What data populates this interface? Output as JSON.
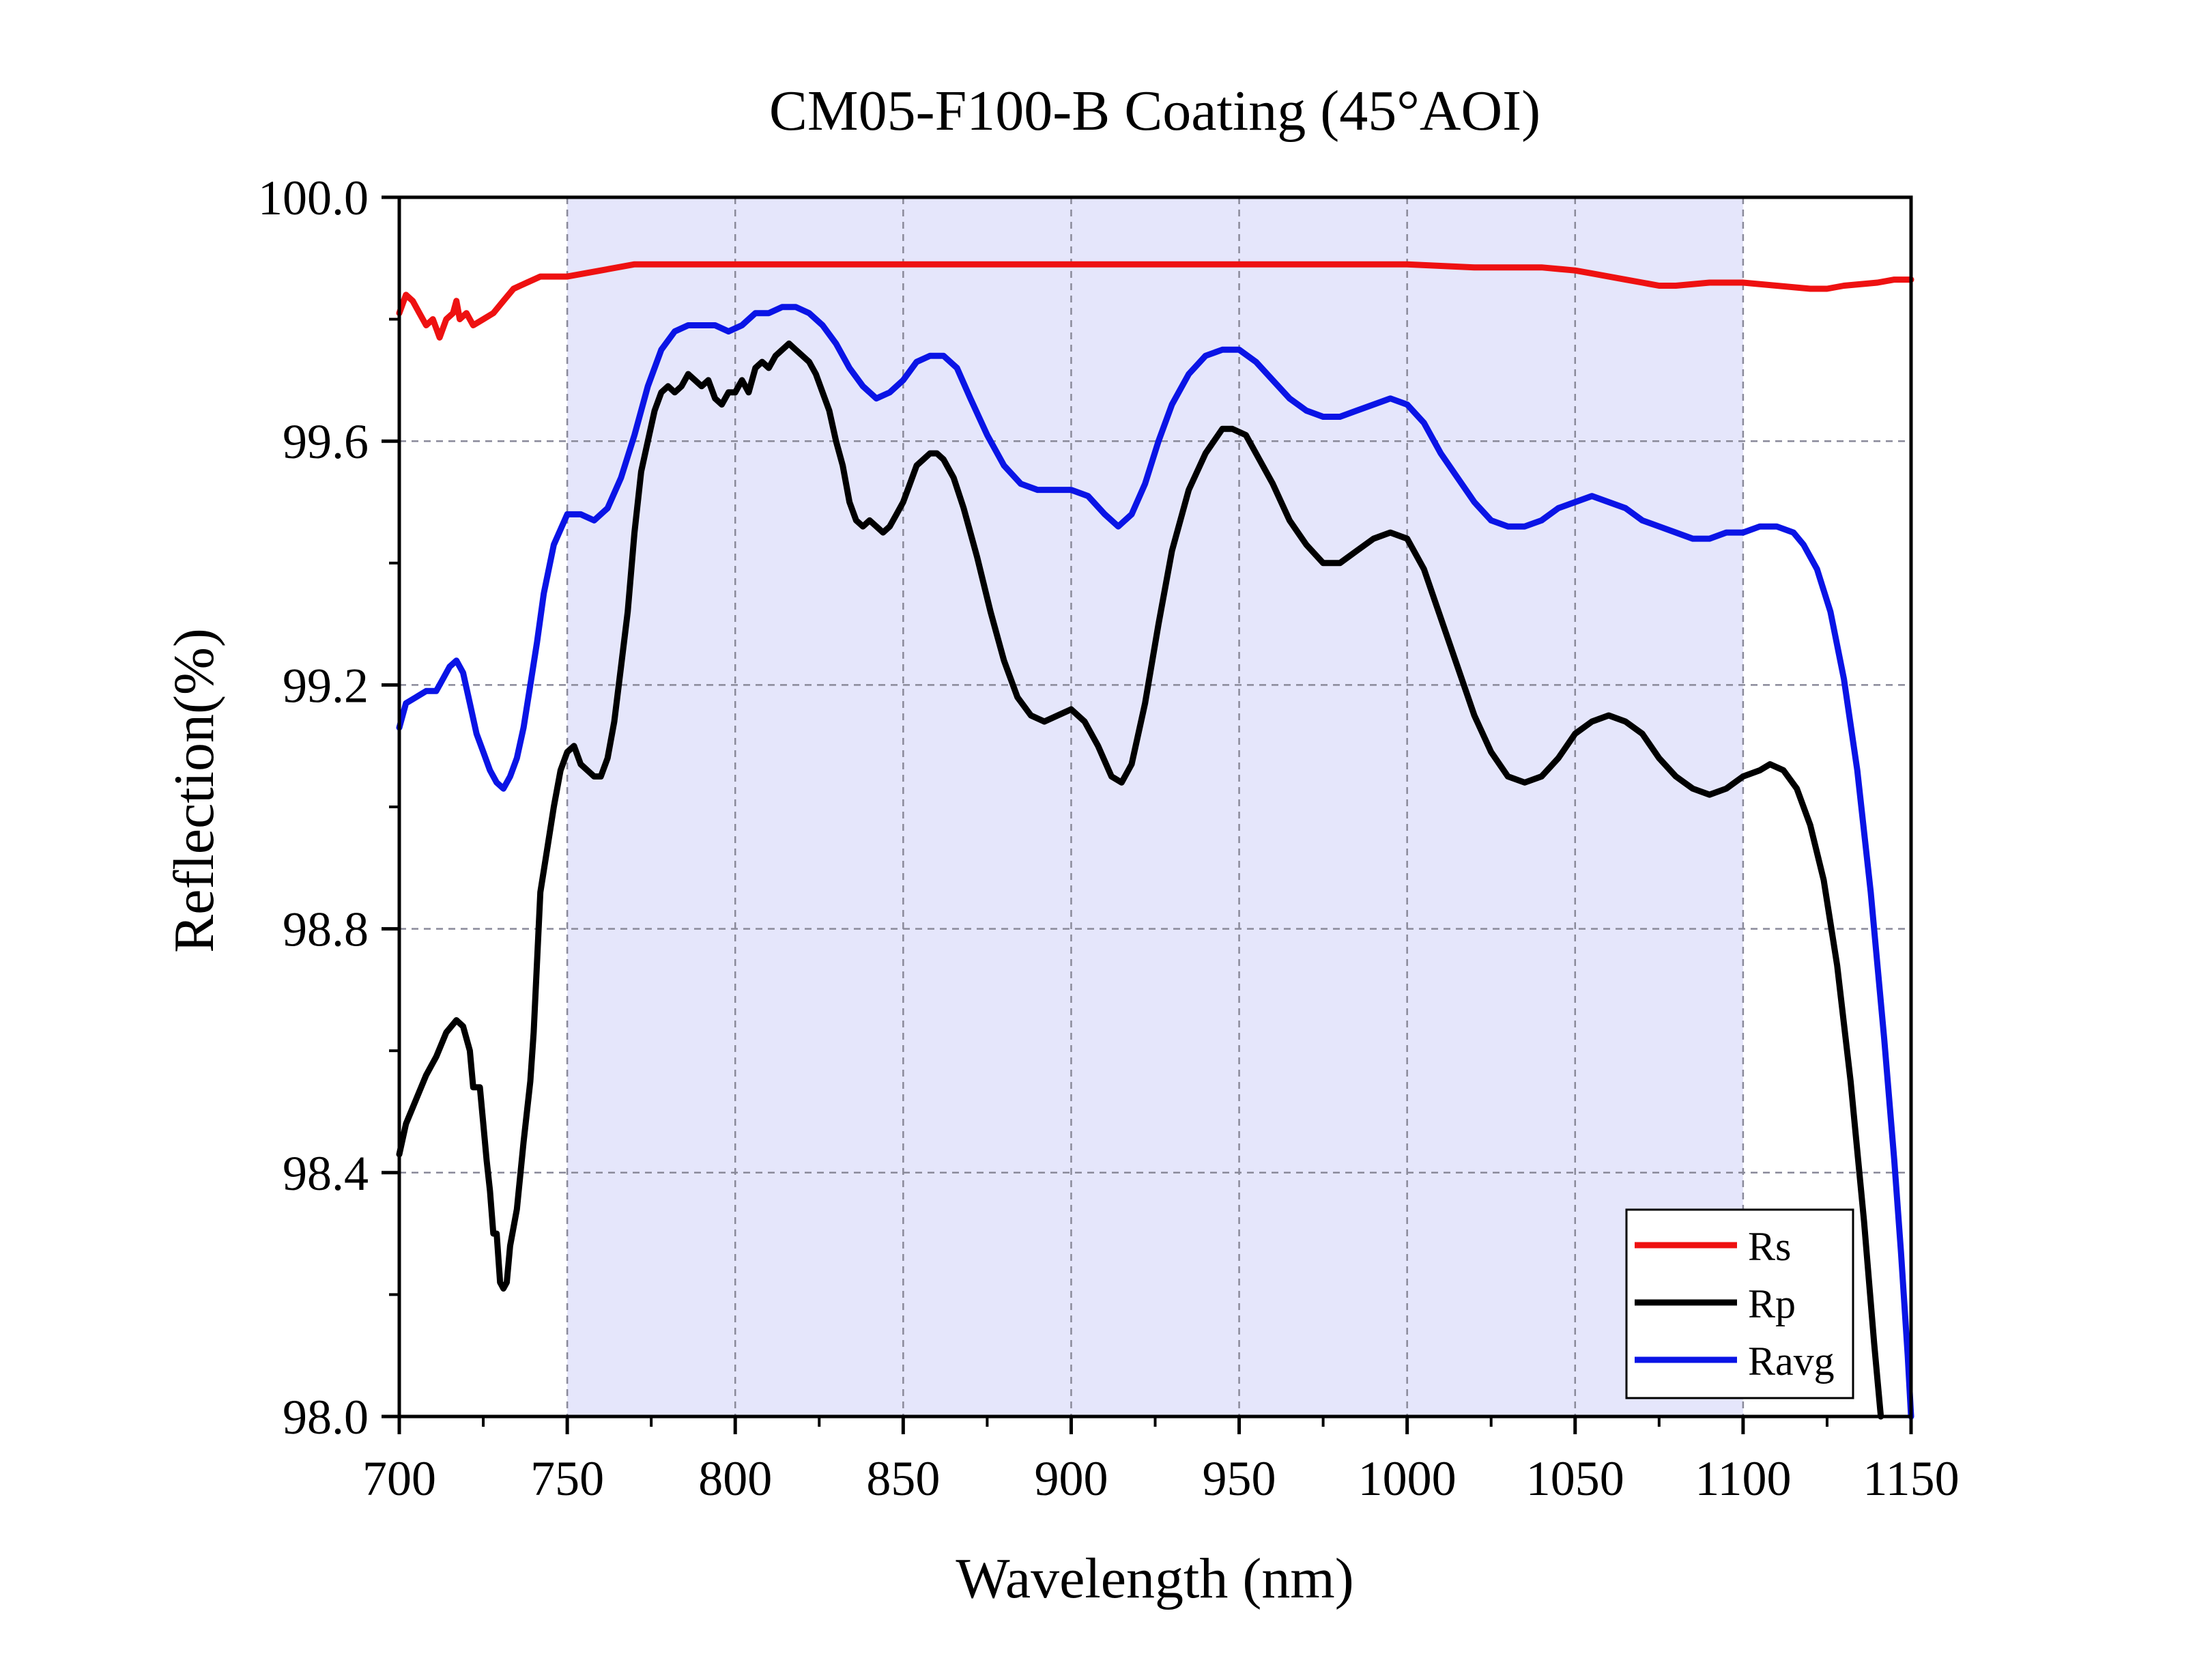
{
  "chart_data": {
    "type": "line",
    "title": "CM05-F100-B Coating (45°AOI)",
    "xlabel": "Wavelength (nm)",
    "ylabel": "Reflection(%)",
    "xlim": [
      700,
      1150
    ],
    "ylim": [
      98.0,
      100.0
    ],
    "x_ticks": [
      "700",
      "750",
      "800",
      "850",
      "900",
      "950",
      "1000",
      "1050",
      "1100",
      "1150"
    ],
    "y_ticks": [
      "98.0",
      "98.4",
      "98.8",
      "99.2",
      "99.6",
      "100.0"
    ],
    "grid": "dashed",
    "highlight_band": [
      750,
      1100
    ],
    "legend_position": "bottom-right",
    "series": [
      {
        "name": "Rs",
        "color": "#ee1111",
        "points": [
          [
            700,
            99.81
          ],
          [
            702,
            99.84
          ],
          [
            704,
            99.83
          ],
          [
            706,
            99.81
          ],
          [
            708,
            99.79
          ],
          [
            710,
            99.8
          ],
          [
            712,
            99.77
          ],
          [
            714,
            99.8
          ],
          [
            716,
            99.81
          ],
          [
            717,
            99.83
          ],
          [
            718,
            99.8
          ],
          [
            720,
            99.81
          ],
          [
            722,
            99.79
          ],
          [
            725,
            99.8
          ],
          [
            728,
            99.81
          ],
          [
            731,
            99.83
          ],
          [
            734,
            99.85
          ],
          [
            738,
            99.86
          ],
          [
            742,
            99.87
          ],
          [
            746,
            99.87
          ],
          [
            750,
            99.87
          ],
          [
            760,
            99.88
          ],
          [
            770,
            99.89
          ],
          [
            780,
            99.89
          ],
          [
            800,
            99.89
          ],
          [
            820,
            99.89
          ],
          [
            840,
            99.89
          ],
          [
            860,
            99.89
          ],
          [
            880,
            99.89
          ],
          [
            900,
            99.89
          ],
          [
            950,
            99.89
          ],
          [
            1000,
            99.89
          ],
          [
            1020,
            99.885
          ],
          [
            1040,
            99.885
          ],
          [
            1050,
            99.88
          ],
          [
            1055,
            99.875
          ],
          [
            1060,
            99.87
          ],
          [
            1065,
            99.865
          ],
          [
            1070,
            99.86
          ],
          [
            1075,
            99.855
          ],
          [
            1080,
            99.855
          ],
          [
            1090,
            99.86
          ],
          [
            1100,
            99.86
          ],
          [
            1110,
            99.855
          ],
          [
            1120,
            99.85
          ],
          [
            1125,
            99.85
          ],
          [
            1130,
            99.855
          ],
          [
            1140,
            99.86
          ],
          [
            1145,
            99.865
          ],
          [
            1150,
            99.865
          ]
        ]
      },
      {
        "name": "Rp",
        "color": "#000000",
        "points": [
          [
            700,
            98.43
          ],
          [
            702,
            98.48
          ],
          [
            705,
            98.52
          ],
          [
            708,
            98.56
          ],
          [
            711,
            98.59
          ],
          [
            714,
            98.63
          ],
          [
            717,
            98.65
          ],
          [
            719,
            98.64
          ],
          [
            721,
            98.6
          ],
          [
            722,
            98.54
          ],
          [
            724,
            98.54
          ],
          [
            725,
            98.48
          ],
          [
            726,
            98.42
          ],
          [
            727,
            98.37
          ],
          [
            728,
            98.3
          ],
          [
            729,
            98.3
          ],
          [
            730,
            98.22
          ],
          [
            731,
            98.21
          ],
          [
            732,
            98.22
          ],
          [
            733,
            98.28
          ],
          [
            735,
            98.34
          ],
          [
            737,
            98.45
          ],
          [
            739,
            98.55
          ],
          [
            740,
            98.63
          ],
          [
            742,
            98.86
          ],
          [
            744,
            98.93
          ],
          [
            746,
            99.0
          ],
          [
            748,
            99.06
          ],
          [
            750,
            99.09
          ],
          [
            752,
            99.1
          ],
          [
            754,
            99.07
          ],
          [
            756,
            99.06
          ],
          [
            758,
            99.05
          ],
          [
            760,
            99.05
          ],
          [
            762,
            99.08
          ],
          [
            764,
            99.14
          ],
          [
            766,
            99.23
          ],
          [
            768,
            99.32
          ],
          [
            770,
            99.45
          ],
          [
            772,
            99.55
          ],
          [
            774,
            99.6
          ],
          [
            776,
            99.65
          ],
          [
            778,
            99.68
          ],
          [
            780,
            99.69
          ],
          [
            782,
            99.68
          ],
          [
            784,
            99.69
          ],
          [
            786,
            99.71
          ],
          [
            788,
            99.7
          ],
          [
            790,
            99.69
          ],
          [
            792,
            99.7
          ],
          [
            794,
            99.67
          ],
          [
            796,
            99.66
          ],
          [
            798,
            99.68
          ],
          [
            800,
            99.68
          ],
          [
            802,
            99.7
          ],
          [
            804,
            99.68
          ],
          [
            806,
            99.72
          ],
          [
            808,
            99.73
          ],
          [
            810,
            99.72
          ],
          [
            812,
            99.74
          ],
          [
            814,
            99.75
          ],
          [
            816,
            99.76
          ],
          [
            818,
            99.75
          ],
          [
            820,
            99.74
          ],
          [
            822,
            99.73
          ],
          [
            824,
            99.71
          ],
          [
            826,
            99.68
          ],
          [
            828,
            99.65
          ],
          [
            830,
            99.6
          ],
          [
            832,
            99.56
          ],
          [
            834,
            99.5
          ],
          [
            836,
            99.47
          ],
          [
            838,
            99.46
          ],
          [
            840,
            99.47
          ],
          [
            842,
            99.46
          ],
          [
            844,
            99.45
          ],
          [
            846,
            99.46
          ],
          [
            848,
            99.48
          ],
          [
            850,
            99.5
          ],
          [
            852,
            99.53
          ],
          [
            854,
            99.56
          ],
          [
            856,
            99.57
          ],
          [
            858,
            99.58
          ],
          [
            860,
            99.58
          ],
          [
            862,
            99.57
          ],
          [
            865,
            99.54
          ],
          [
            868,
            99.49
          ],
          [
            872,
            99.41
          ],
          [
            876,
            99.32
          ],
          [
            880,
            99.24
          ],
          [
            884,
            99.18
          ],
          [
            888,
            99.15
          ],
          [
            892,
            99.14
          ],
          [
            896,
            99.15
          ],
          [
            900,
            99.16
          ],
          [
            904,
            99.14
          ],
          [
            908,
            99.1
          ],
          [
            912,
            99.05
          ],
          [
            915,
            99.04
          ],
          [
            918,
            99.07
          ],
          [
            922,
            99.17
          ],
          [
            926,
            99.3
          ],
          [
            930,
            99.42
          ],
          [
            935,
            99.52
          ],
          [
            940,
            99.58
          ],
          [
            945,
            99.62
          ],
          [
            948,
            99.62
          ],
          [
            952,
            99.61
          ],
          [
            956,
            99.57
          ],
          [
            960,
            99.53
          ],
          [
            965,
            99.47
          ],
          [
            970,
            99.43
          ],
          [
            975,
            99.4
          ],
          [
            980,
            99.4
          ],
          [
            985,
            99.42
          ],
          [
            990,
            99.44
          ],
          [
            995,
            99.45
          ],
          [
            1000,
            99.44
          ],
          [
            1005,
            99.39
          ],
          [
            1010,
            99.31
          ],
          [
            1015,
            99.23
          ],
          [
            1020,
            99.15
          ],
          [
            1025,
            99.09
          ],
          [
            1030,
            99.05
          ],
          [
            1035,
            99.04
          ],
          [
            1040,
            99.05
          ],
          [
            1045,
            99.08
          ],
          [
            1050,
            99.12
          ],
          [
            1055,
            99.14
          ],
          [
            1060,
            99.15
          ],
          [
            1065,
            99.14
          ],
          [
            1070,
            99.12
          ],
          [
            1075,
            99.08
          ],
          [
            1080,
            99.05
          ],
          [
            1085,
            99.03
          ],
          [
            1090,
            99.02
          ],
          [
            1095,
            99.03
          ],
          [
            1100,
            99.05
          ],
          [
            1105,
            99.06
          ],
          [
            1108,
            99.07
          ],
          [
            1112,
            99.06
          ],
          [
            1116,
            99.03
          ],
          [
            1120,
            98.97
          ],
          [
            1124,
            98.88
          ],
          [
            1128,
            98.74
          ],
          [
            1132,
            98.55
          ],
          [
            1136,
            98.32
          ],
          [
            1139,
            98.12
          ],
          [
            1141,
            98.0
          ]
        ]
      },
      {
        "name": "Ravg",
        "color": "#0a14e6",
        "points": [
          [
            700,
            99.13
          ],
          [
            702,
            99.17
          ],
          [
            705,
            99.18
          ],
          [
            708,
            99.19
          ],
          [
            711,
            99.19
          ],
          [
            713,
            99.21
          ],
          [
            715,
            99.23
          ],
          [
            717,
            99.24
          ],
          [
            719,
            99.22
          ],
          [
            721,
            99.17
          ],
          [
            723,
            99.12
          ],
          [
            725,
            99.09
          ],
          [
            727,
            99.06
          ],
          [
            729,
            99.04
          ],
          [
            731,
            99.03
          ],
          [
            733,
            99.05
          ],
          [
            735,
            99.08
          ],
          [
            737,
            99.13
          ],
          [
            739,
            99.2
          ],
          [
            741,
            99.27
          ],
          [
            743,
            99.35
          ],
          [
            746,
            99.43
          ],
          [
            750,
            99.48
          ],
          [
            754,
            99.48
          ],
          [
            758,
            99.47
          ],
          [
            762,
            99.49
          ],
          [
            766,
            99.54
          ],
          [
            770,
            99.61
          ],
          [
            774,
            99.69
          ],
          [
            778,
            99.75
          ],
          [
            782,
            99.78
          ],
          [
            786,
            99.79
          ],
          [
            790,
            99.79
          ],
          [
            794,
            99.79
          ],
          [
            798,
            99.78
          ],
          [
            802,
            99.79
          ],
          [
            806,
            99.81
          ],
          [
            810,
            99.81
          ],
          [
            814,
            99.82
          ],
          [
            818,
            99.82
          ],
          [
            822,
            99.81
          ],
          [
            826,
            99.79
          ],
          [
            830,
            99.76
          ],
          [
            834,
            99.72
          ],
          [
            838,
            99.69
          ],
          [
            842,
            99.67
          ],
          [
            846,
            99.68
          ],
          [
            850,
            99.7
          ],
          [
            854,
            99.73
          ],
          [
            858,
            99.74
          ],
          [
            862,
            99.74
          ],
          [
            866,
            99.72
          ],
          [
            870,
            99.67
          ],
          [
            875,
            99.61
          ],
          [
            880,
            99.56
          ],
          [
            885,
            99.53
          ],
          [
            890,
            99.52
          ],
          [
            895,
            99.52
          ],
          [
            900,
            99.52
          ],
          [
            905,
            99.51
          ],
          [
            910,
            99.48
          ],
          [
            914,
            99.46
          ],
          [
            918,
            99.48
          ],
          [
            922,
            99.53
          ],
          [
            926,
            99.6
          ],
          [
            930,
            99.66
          ],
          [
            935,
            99.71
          ],
          [
            940,
            99.74
          ],
          [
            945,
            99.75
          ],
          [
            950,
            99.75
          ],
          [
            955,
            99.73
          ],
          [
            960,
            99.7
          ],
          [
            965,
            99.67
          ],
          [
            970,
            99.65
          ],
          [
            975,
            99.64
          ],
          [
            980,
            99.64
          ],
          [
            985,
            99.65
          ],
          [
            990,
            99.66
          ],
          [
            995,
            99.67
          ],
          [
            1000,
            99.66
          ],
          [
            1005,
            99.63
          ],
          [
            1010,
            99.58
          ],
          [
            1015,
            99.54
          ],
          [
            1020,
            99.5
          ],
          [
            1025,
            99.47
          ],
          [
            1030,
            99.46
          ],
          [
            1035,
            99.46
          ],
          [
            1040,
            99.47
          ],
          [
            1045,
            99.49
          ],
          [
            1050,
            99.5
          ],
          [
            1055,
            99.51
          ],
          [
            1060,
            99.5
          ],
          [
            1065,
            99.49
          ],
          [
            1070,
            99.47
          ],
          [
            1075,
            99.46
          ],
          [
            1080,
            99.45
          ],
          [
            1085,
            99.44
          ],
          [
            1090,
            99.44
          ],
          [
            1095,
            99.45
          ],
          [
            1100,
            99.45
          ],
          [
            1105,
            99.46
          ],
          [
            1110,
            99.46
          ],
          [
            1115,
            99.45
          ],
          [
            1118,
            99.43
          ],
          [
            1122,
            99.39
          ],
          [
            1126,
            99.32
          ],
          [
            1130,
            99.21
          ],
          [
            1134,
            99.06
          ],
          [
            1138,
            98.86
          ],
          [
            1142,
            98.62
          ],
          [
            1145,
            98.42
          ],
          [
            1147,
            98.27
          ],
          [
            1149,
            98.1
          ],
          [
            1150,
            98.0
          ]
        ]
      }
    ]
  }
}
